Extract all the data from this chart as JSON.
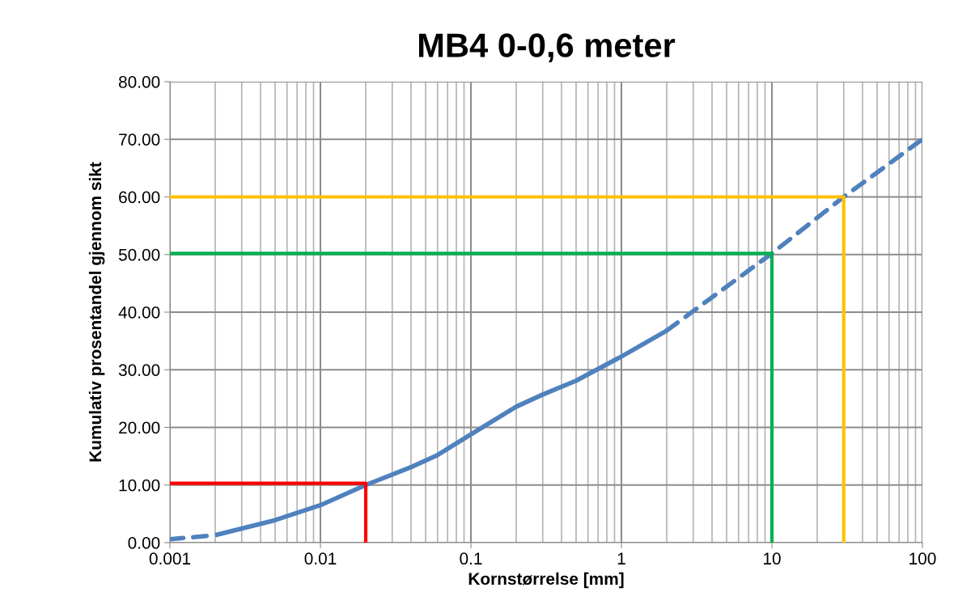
{
  "chart_data": {
    "type": "line",
    "title": "MB4 0-0,6 meter",
    "xlabel": "Kornstørrelse [mm]",
    "ylabel": "Kumulativ prosentandel gjennom sikt",
    "log": "x",
    "grid": true,
    "marker": "none",
    "xlim": [
      0.001,
      100
    ],
    "xticks": [
      {
        "value": 0.001,
        "label": "0.001"
      },
      {
        "value": 0.01,
        "label": "0.01"
      },
      {
        "value": 0.1,
        "label": "0.1"
      },
      {
        "value": 1,
        "label": "1"
      },
      {
        "value": 10,
        "label": "10"
      },
      {
        "value": 100,
        "label": "100"
      }
    ],
    "ylim": [
      0,
      80
    ],
    "yticks": [
      {
        "value": 0,
        "label": "0.00"
      },
      {
        "value": 10,
        "label": "10.00"
      },
      {
        "value": 20,
        "label": "20.00"
      },
      {
        "value": 30,
        "label": "30.00"
      },
      {
        "value": 40,
        "label": "40.00"
      },
      {
        "value": 50,
        "label": "50.00"
      },
      {
        "value": 60,
        "label": "60.00"
      },
      {
        "value": 70,
        "label": "70.00"
      },
      {
        "value": 80,
        "label": "80.00"
      }
    ],
    "series": [
      {
        "color": "#4f81bd",
        "line_style": "dashed",
        "x": [
          0.001,
          0.002
        ],
        "values": [
          0.6,
          1.3
        ]
      },
      {
        "color": "#4f81bd",
        "line_style": "solid",
        "x": [
          0.002,
          0.005,
          0.01,
          0.02,
          0.04,
          0.06,
          0.1,
          0.2,
          0.3,
          0.5,
          1,
          2
        ],
        "values": [
          1.3,
          3.9,
          6.5,
          10.0,
          13.1,
          15.2,
          18.8,
          23.6,
          25.7,
          28.1,
          32.3,
          36.8
        ]
      },
      {
        "color": "#4f81bd",
        "line_style": "dashed",
        "x": [
          2,
          10,
          30,
          100
        ],
        "values": [
          36.8,
          50.2,
          60.0,
          70.0
        ]
      },
      {
        "color": "#ff0000",
        "line_style": "solid",
        "x": [
          0.001,
          0.02,
          0.02
        ],
        "values": [
          10.3,
          10.3,
          0
        ]
      },
      {
        "color": "#00b050",
        "line_style": "solid",
        "x": [
          0.001,
          10,
          10
        ],
        "values": [
          50.2,
          50.2,
          0
        ]
      },
      {
        "color": "#ffc000",
        "line_style": "solid",
        "x": [
          0.001,
          30,
          30
        ],
        "values": [
          60.0,
          60.0,
          0
        ]
      }
    ]
  }
}
